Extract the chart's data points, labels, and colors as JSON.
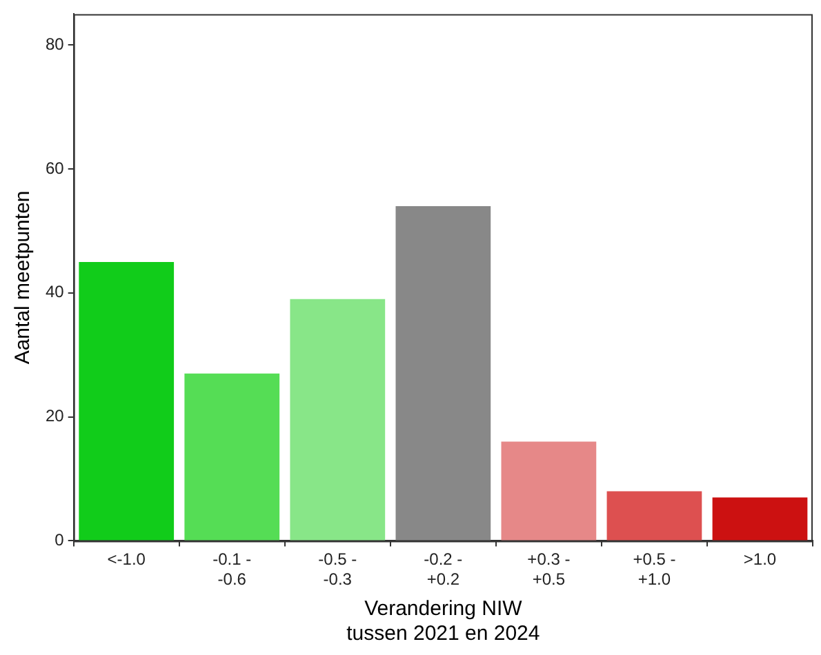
{
  "chart_data": {
    "type": "bar",
    "xlabel": "Verandering NIW\ntussen 2021 en 2024",
    "ylabel": "Aantal meetpunten",
    "categories": [
      "<-1.0",
      "-0.1 -\n-0.6",
      "-0.5 -\n-0.3",
      "-0.2 -\n+0.2",
      "+0.3 -\n+0.5",
      "+0.5 -\n+1.0",
      ">1.0"
    ],
    "values": [
      45,
      27,
      39,
      54,
      16,
      8,
      7
    ],
    "colors": [
      "#11cc1a",
      "#55dd55",
      "#88e688",
      "#888888",
      "#e68888",
      "#dd5050",
      "#cc1111"
    ],
    "ylim": [
      0,
      85
    ],
    "yticks": [
      0,
      20,
      40,
      60,
      80
    ],
    "grid": false,
    "legend": false
  }
}
